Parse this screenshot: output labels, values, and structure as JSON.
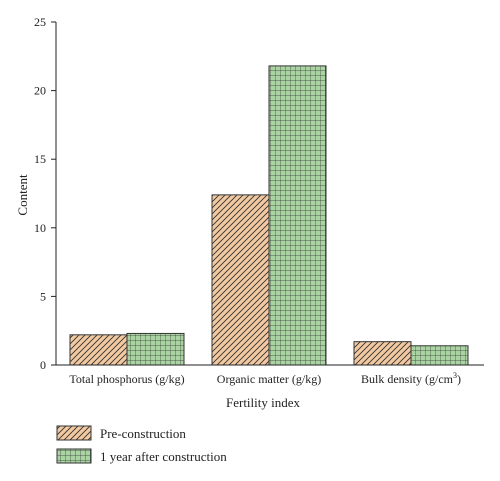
{
  "chart_data": {
    "type": "bar",
    "xlabel": "Fertility index",
    "ylabel": "Content",
    "ylim": [
      0,
      25
    ],
    "yticks": [
      0,
      5,
      10,
      15,
      20,
      25
    ],
    "categories": [
      {
        "main": "Total phosphorus (g/kg)",
        "sup": ""
      },
      {
        "main": "Organic matter (g/kg)",
        "sup": ""
      },
      {
        "main": "Bulk density (g/cm",
        "sup": "3",
        "tail": ")"
      }
    ],
    "series": [
      {
        "name": "Pre-construction",
        "values": [
          2.2,
          12.4,
          1.7
        ],
        "color": "#f2c9a0",
        "pattern": "diagonal-hatch"
      },
      {
        "name": "1 year after construction",
        "values": [
          2.3,
          21.8,
          1.4
        ],
        "color": "#a9d4a1",
        "pattern": "grid"
      }
    ],
    "grid": false,
    "legend_position": "bottom-left"
  }
}
